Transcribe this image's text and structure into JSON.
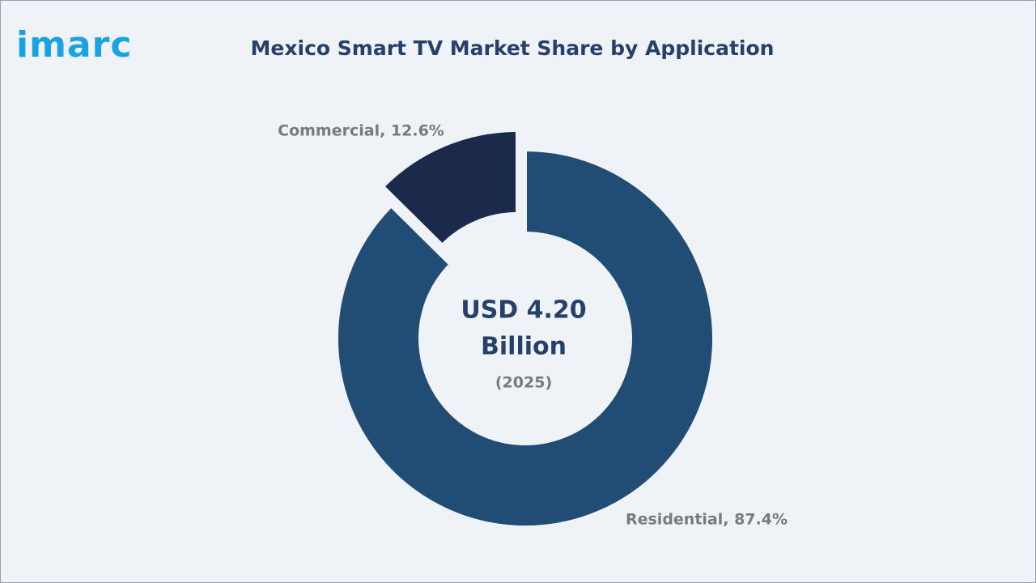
{
  "logo": "imarc",
  "chart_data": {
    "type": "donut",
    "title": "Mexico Smart TV Market Share by Application",
    "values": [
      87.4,
      12.6
    ],
    "value_labels": [
      "Residential, 87.4%",
      "Commercial, 12.6%"
    ],
    "colors": [
      "#214d75",
      "#1b2a4b"
    ],
    "center_text": [
      "USD 4.20",
      "Billion",
      "(2025)"
    ]
  }
}
